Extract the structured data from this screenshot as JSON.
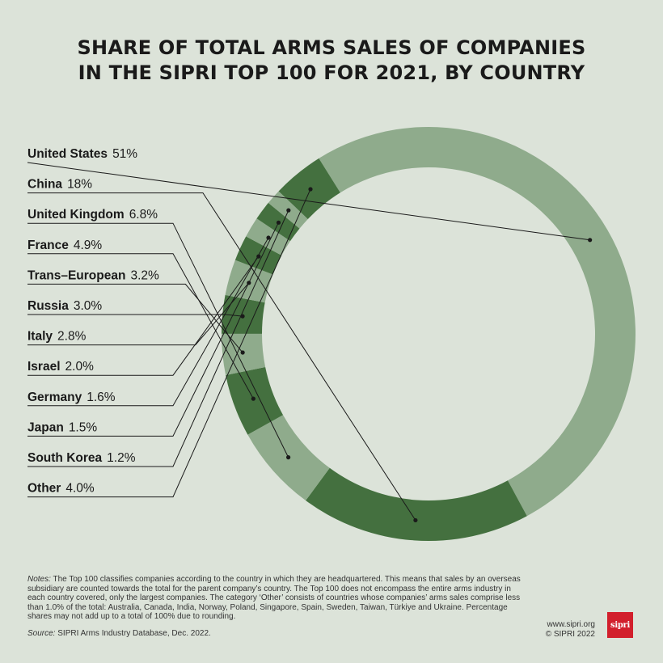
{
  "title": {
    "line1": "SHARE OF TOTAL ARMS SALES OF COMPANIES",
    "line2": "IN THE SIPRI TOP 100 FOR 2021, BY COUNTRY"
  },
  "chart_data": {
    "type": "pie",
    "variant": "donut",
    "title": "SHARE OF TOTAL ARMS SALES OF COMPANIES IN THE SIPRI TOP 100 FOR 2021, BY COUNTRY",
    "unit": "%",
    "slices": [
      {
        "label": "United States",
        "value": 51,
        "display": "51%"
      },
      {
        "label": "China",
        "value": 18,
        "display": "18%"
      },
      {
        "label": "United Kingdom",
        "value": 6.8,
        "display": "6.8%"
      },
      {
        "label": "France",
        "value": 4.9,
        "display": "4.9%"
      },
      {
        "label": "Trans–European",
        "value": 3.2,
        "display": "3.2%"
      },
      {
        "label": "Russia",
        "value": 3.0,
        "display": "3.0%"
      },
      {
        "label": "Italy",
        "value": 2.8,
        "display": "2.8%"
      },
      {
        "label": "Israel",
        "value": 2.0,
        "display": "2.0%"
      },
      {
        "label": "Germany",
        "value": 1.6,
        "display": "1.6%"
      },
      {
        "label": "Japan",
        "value": 1.5,
        "display": "1.5%"
      },
      {
        "label": "South Korea",
        "value": 1.2,
        "display": "1.2%"
      },
      {
        "label": "Other",
        "value": 4.0,
        "display": "4.0%"
      }
    ],
    "colors": {
      "dark": "#44703f",
      "light": "#8fab8c",
      "background": "#dce3d9",
      "leader": "#1a1a1a"
    }
  },
  "notes": {
    "label": "Notes:",
    "text": " The Top 100 classifies companies according to the country in which they are headquartered. This means that sales by an overseas subsidiary are counted towards the total for the parent company’s country. The Top 100 does not encompass the entire arms industry in each country covered, only the largest companies. The category ‘Other’ consists of countries whose companies’ arms sales comprise less than 1.0% of the total: Australia, Canada, India, Norway, Poland, Singapore, Spain, Sweden, Taiwan, Türkiye and Ukraine. Percentage shares may not add up to a total of 100% due to rounding."
  },
  "source": {
    "label": "Source:",
    "text": " SIPRI Arms Industry Database, Dec. 2022."
  },
  "footer": {
    "url": "www.sipri.org",
    "copyright": "© SIPRI 2022",
    "logo_text": "sipri"
  }
}
